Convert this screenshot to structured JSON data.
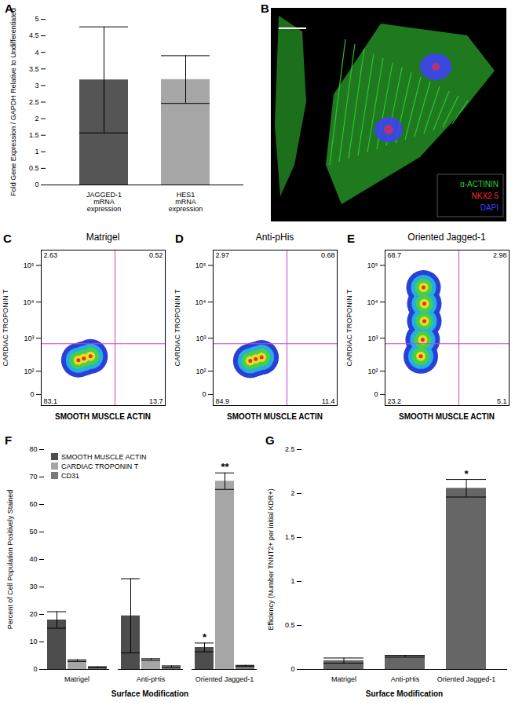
{
  "chart_data": [
    {
      "panel_label": "A",
      "type": "bar",
      "y_label": "Fold Gene Expression / GAPDH Relative to Undifferentiated",
      "categories": [
        "JAGGED-1\nmRNA\nexpression",
        "HES1\nmRNA\nexpression"
      ],
      "values": [
        3.17,
        3.18
      ],
      "errors": [
        1.6,
        0.72
      ],
      "colors": [
        "#555555",
        "#a6a6a6"
      ],
      "ylim": [
        0,
        5
      ],
      "yticks": [
        0,
        0.5,
        1,
        1.5,
        2,
        2.5,
        3,
        3.5,
        4,
        4.5,
        5
      ]
    },
    {
      "panel_label": "B",
      "type": "image",
      "legend_entries": [
        {
          "name": "α-ACTININ",
          "color": "#33cc33"
        },
        {
          "name": "NKX2.5",
          "color": "#ff2a2a"
        },
        {
          "name": "DAPI",
          "color": "#4040ff"
        }
      ]
    },
    {
      "panel_label": "C",
      "type": "density",
      "title": "Matrigel",
      "x_label": "SMOOTH MUSCLE ACTIN",
      "y_label": "CARDIAC TROPONIN T",
      "log": true,
      "xlim": [
        -30,
        262144
      ],
      "ylim": [
        -30,
        262144
      ],
      "yticks": [
        0,
        {
          "value": 100,
          "label": "10²"
        },
        {
          "value": 1000,
          "label": "10³"
        },
        {
          "value": 10000,
          "label": "10⁴"
        },
        {
          "value": 100000,
          "label": "10⁵"
        }
      ],
      "tick_labels": "y",
      "gates": {
        "x": 5000,
        "y": 700
      },
      "quadrants": {
        "upper_left": 2.63,
        "upper_right": 0.52,
        "lower_left": 83.1,
        "lower_right": 13.7
      },
      "population_centers": {
        "x": [
          250,
          400,
          700
        ],
        "y": [
          230,
          260,
          300
        ]
      }
    },
    {
      "panel_label": "D",
      "type": "density",
      "title": "Anti-pHis",
      "x_label": "SMOOTH MUSCLE ACTIN",
      "y_label": "CARDIAC TROPONIN T",
      "log": true,
      "xlim": [
        -30,
        262144
      ],
      "ylim": [
        -30,
        262144
      ],
      "yticks": [
        0,
        {
          "value": 100,
          "label": "10²"
        },
        {
          "value": 1000,
          "label": "10³"
        },
        {
          "value": 10000,
          "label": "10⁴"
        },
        {
          "value": 100000,
          "label": "10⁵"
        }
      ],
      "tick_labels": "y",
      "gates": {
        "x": 5000,
        "y": 700
      },
      "quadrants": {
        "upper_left": 2.97,
        "upper_right": 0.68,
        "lower_left": 84.9,
        "lower_right": 11.4
      },
      "population_centers": {
        "x": [
          250,
          400,
          650
        ],
        "y": [
          220,
          250,
          280
        ]
      }
    },
    {
      "panel_label": "E",
      "type": "density",
      "title": "Oriented Jagged-1",
      "x_label": "SMOOTH MUSCLE ACTIN",
      "y_label": "CARDIAC TROPONIN T",
      "log": true,
      "xlim": [
        -30,
        262144
      ],
      "ylim": [
        -30,
        262144
      ],
      "yticks": [
        0,
        {
          "value": 100,
          "label": "10²"
        },
        {
          "value": 1000,
          "label": "10³"
        },
        {
          "value": 10000,
          "label": "10⁴"
        },
        {
          "value": 100000,
          "label": "10⁵"
        }
      ],
      "tick_labels": "y",
      "gates": {
        "x": 5000,
        "y": 700
      },
      "quadrants": {
        "upper_left": 68.7,
        "upper_right": 2.98,
        "lower_left": 23.2,
        "lower_right": 5.1
      },
      "population_centers": {
        "x": [
          220,
          260,
          300,
          300,
          280
        ],
        "y": [
          300,
          900,
          3000,
          9000,
          25000
        ]
      }
    },
    {
      "panel_label": "F",
      "type": "bar",
      "y_label": "Percent of Cell Population Positively Stained",
      "x_label": "Surface Modification",
      "categories": [
        "Matrigel",
        "Anti-pHis",
        "Oriented Jagged-1"
      ],
      "series": [
        {
          "name": "SMOOTH MUSCLE ACTIN",
          "color": "#4d4d4d",
          "values": [
            18,
            19.5,
            8
          ],
          "errors": [
            3,
            13.5,
            1.6
          ]
        },
        {
          "name": "CARDIAC TROPONIN T",
          "color": "#a6a6a6",
          "values": [
            3.2,
            3.6,
            68.5
          ],
          "errors": [
            0.3,
            0.3,
            3
          ]
        },
        {
          "name": "CD31",
          "color": "#7a7a7a",
          "values": [
            0.8,
            1.0,
            1.3
          ],
          "errors": [
            0.2,
            0.3,
            0.2
          ]
        }
      ],
      "ylim": [
        0,
        80
      ],
      "yticks": [
        0,
        10,
        20,
        30,
        40,
        50,
        60,
        70,
        80
      ],
      "legend": "upper left",
      "annotations": [
        {
          "category": "Oriented Jagged-1",
          "series": "SMOOTH MUSCLE ACTIN",
          "text": "*"
        },
        {
          "category": "Oriented Jagged-1",
          "series": "CARDIAC TROPONIN T",
          "text": "**"
        }
      ]
    },
    {
      "panel_label": "G",
      "type": "bar",
      "y_label": "Efficiency (Number TNNT2+ per initial KDR+)",
      "x_label": "Surface Modification",
      "categories": [
        "Matrigel",
        "Anti-pHis",
        "Oriented Jagged-1"
      ],
      "values": [
        0.1,
        0.15,
        2.06
      ],
      "errors": [
        0.03,
        0.01,
        0.1
      ],
      "color": "#666666",
      "ylim": [
        0,
        2.5
      ],
      "yticks": [
        0,
        0.5,
        1,
        1.5,
        2,
        2.5
      ],
      "annotations": [
        {
          "category": "Oriented Jagged-1",
          "text": "*"
        }
      ]
    }
  ]
}
